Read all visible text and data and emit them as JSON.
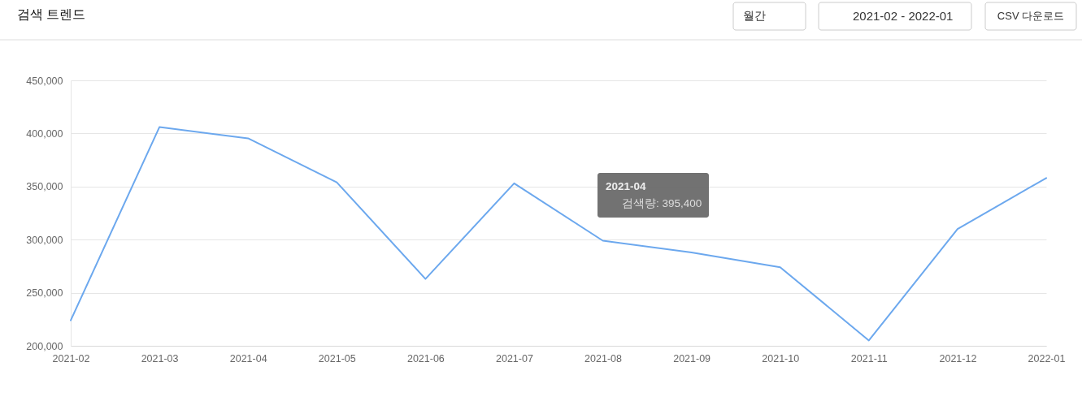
{
  "chart_data": {
    "type": "line",
    "title": "검색 트렌드",
    "categories": [
      "2021-02",
      "2021-03",
      "2021-04",
      "2021-05",
      "2021-06",
      "2021-07",
      "2021-08",
      "2021-09",
      "2021-10",
      "2021-11",
      "2021-12",
      "2022-01"
    ],
    "series": [
      {
        "color": "#6ca8ee",
        "values": [
          224000,
          406000,
          395400,
          354000,
          263000,
          353000,
          299000,
          288000,
          274000,
          205000,
          310000,
          358000
        ]
      }
    ],
    "ylim": [
      200000,
      450000
    ],
    "yticks": [
      {
        "value": 200000,
        "label": "200,000"
      },
      {
        "value": 250000,
        "label": "250,000"
      },
      {
        "value": 300000,
        "label": "300,000"
      },
      {
        "value": 350000,
        "label": "350,000"
      },
      {
        "value": 400000,
        "label": "400,000"
      },
      {
        "value": 450000,
        "label": "450,000"
      }
    ],
    "grid": "y",
    "legend": false,
    "marker": "none",
    "line_style": "solid",
    "annotations": [
      "월간",
      "2021-02 - 2022-01",
      "CSV 다운로드",
      "2021-04",
      "검색량: 395,400"
    ]
  }
}
